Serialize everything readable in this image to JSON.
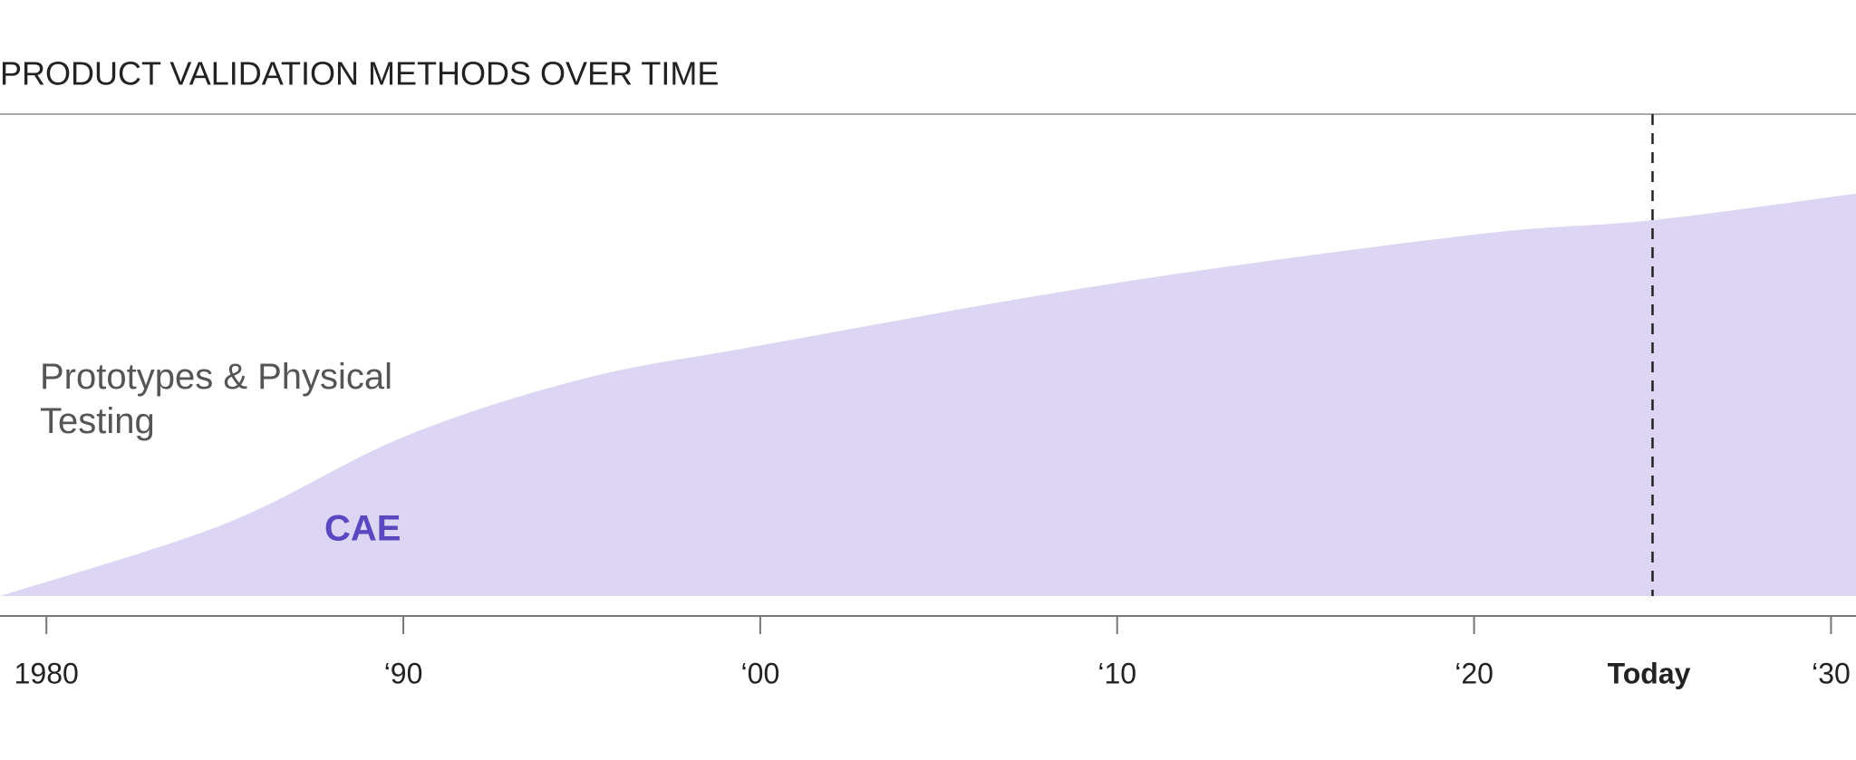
{
  "chart_data": {
    "type": "area",
    "title": "PRODUCT VALIDATION METHODS OVER TIME",
    "upper_region_label": "Prototypes & Physical Testing",
    "x": [
      1978.7,
      1985,
      1990,
      1995,
      2000,
      2010,
      2020,
      2025,
      2030.7
    ],
    "series": [
      {
        "name": "CAE",
        "color": "#dcd6f4",
        "label_color": "#5b47c0",
        "values": [
          0,
          15,
          33,
          45,
          52,
          65,
          75,
          78,
          83.5
        ]
      }
    ],
    "xlim": [
      1978.7,
      2030.7
    ],
    "ylim": [
      0,
      100
    ],
    "xticks": [
      1980,
      {
        "value": 1990,
        "label": "‘90"
      },
      {
        "value": 2000,
        "label": "‘00"
      },
      {
        "value": 2010,
        "label": "‘10"
      },
      {
        "value": 2020,
        "label": "‘20"
      },
      {
        "value": 2030,
        "label": "‘30"
      }
    ],
    "today": {
      "value": 2025,
      "label": "Today"
    }
  }
}
